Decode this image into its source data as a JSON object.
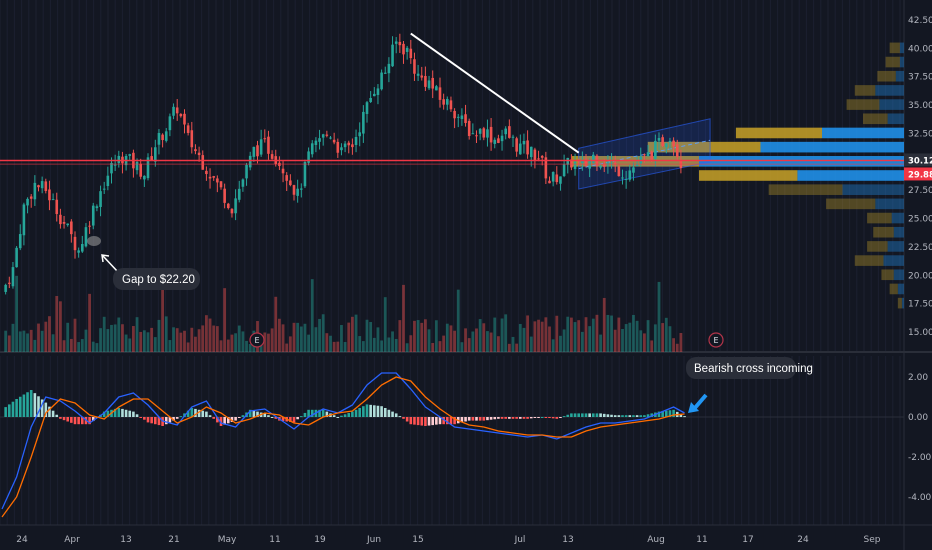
{
  "chart_data": [
    {
      "type": "candlestick",
      "panel": "price",
      "y_ticks": [
        "42.50",
        "40.00",
        "37.50",
        "35.00",
        "32.50",
        "30.00",
        "27.50",
        "25.00",
        "22.50",
        "20.00",
        "17.50",
        "15.00"
      ],
      "y_tick_values": [
        42.5,
        40,
        37.5,
        35,
        32.5,
        30,
        27.5,
        25,
        22.5,
        20,
        17.5,
        15
      ],
      "ylim": [
        13.2,
        43.4
      ],
      "x_ticks": [
        "24",
        "Apr",
        "13",
        "21",
        "May",
        "11",
        "19",
        "Jun",
        "15",
        "Jul",
        "13",
        "Aug",
        "11",
        "17",
        "24",
        "Sep"
      ],
      "last_price_label": "30.12",
      "second_price_label": "29.88",
      "last_price": 30.12,
      "second_price": 29.88,
      "horizontal_line_price": 30.12,
      "trendline": {
        "from_price": 41.3,
        "to_price": 30.8,
        "color": "#ffffff"
      },
      "channel": {
        "lower_start": 27.6,
        "upper_start": 31.2,
        "lower_end": 30.0,
        "upper_end": 33.8
      },
      "earnings_markers": [
        "E",
        "E"
      ],
      "annotations": [
        {
          "text": "Gap to $22.20",
          "price": 22.2
        }
      ],
      "price_path": [
        [
          0,
          18.5
        ],
        [
          3,
          20.5
        ],
        [
          6,
          26.0
        ],
        [
          9,
          28.0
        ],
        [
          12,
          27.5
        ],
        [
          15,
          25.8
        ],
        [
          18,
          24.0
        ],
        [
          21,
          22.2
        ],
        [
          24,
          25.0
        ],
        [
          27,
          27.5
        ],
        [
          30,
          29.5
        ],
        [
          33,
          30.5
        ],
        [
          36,
          29.8
        ],
        [
          39,
          29.0
        ],
        [
          42,
          31.5
        ],
        [
          45,
          33.0
        ],
        [
          48,
          34.8
        ],
        [
          51,
          32.0
        ],
        [
          54,
          30.5
        ],
        [
          57,
          29.0
        ],
        [
          60,
          27.5
        ],
        [
          63,
          26.0
        ],
        [
          66,
          28.5
        ],
        [
          69,
          31.0
        ],
        [
          72,
          31.5
        ],
        [
          75,
          30.5
        ],
        [
          78,
          29.0
        ],
        [
          81,
          27.0
        ],
        [
          84,
          30.5
        ],
        [
          87,
          32.0
        ],
        [
          90,
          32.5
        ],
        [
          93,
          30.8
        ],
        [
          96,
          31.5
        ],
        [
          99,
          34.0
        ],
        [
          102,
          36.5
        ],
        [
          105,
          38.0
        ],
        [
          108,
          40.5
        ],
        [
          111,
          39.8
        ],
        [
          114,
          37.5
        ],
        [
          117,
          37.0
        ],
        [
          120,
          35.5
        ],
        [
          123,
          35.0
        ],
        [
          126,
          33.5
        ],
        [
          129,
          32.5
        ],
        [
          132,
          32.8
        ],
        [
          135,
          32.0
        ],
        [
          138,
          32.5
        ],
        [
          141,
          31.5
        ],
        [
          144,
          31.0
        ],
        [
          147,
          30.5
        ],
        [
          150,
          28.3
        ],
        [
          153,
          29.0
        ],
        [
          156,
          30.0
        ],
        [
          159,
          29.5
        ],
        [
          162,
          30.5
        ],
        [
          165,
          30.0
        ],
        [
          168,
          29.5
        ],
        [
          171,
          29.0
        ],
        [
          174,
          29.8
        ],
        [
          177,
          30.5
        ],
        [
          180,
          31.5
        ],
        [
          183,
          32.5
        ],
        [
          186,
          30.1
        ]
      ],
      "volume_profile": [
        {
          "price": 40.0,
          "up": 0.05,
          "down": 0.02
        },
        {
          "price": 38.75,
          "up": 0.07,
          "down": 0.02
        },
        {
          "price": 37.5,
          "up": 0.09,
          "down": 0.04
        },
        {
          "price": 36.25,
          "up": 0.1,
          "down": 0.14
        },
        {
          "price": 35.0,
          "up": 0.16,
          "down": 0.12
        },
        {
          "price": 33.75,
          "up": 0.12,
          "down": 0.08
        },
        {
          "price": 32.5,
          "up": 0.42,
          "down": 0.4
        },
        {
          "price": 31.25,
          "up": 0.55,
          "down": 0.7
        },
        {
          "price": 30.0,
          "up": 0.62,
          "down": 1.0
        },
        {
          "price": 28.75,
          "up": 0.48,
          "down": 0.52
        },
        {
          "price": 27.5,
          "up": 0.36,
          "down": 0.3
        },
        {
          "price": 26.25,
          "up": 0.24,
          "down": 0.14
        },
        {
          "price": 25.0,
          "up": 0.12,
          "down": 0.06
        },
        {
          "price": 23.75,
          "up": 0.1,
          "down": 0.05
        },
        {
          "price": 22.5,
          "up": 0.1,
          "down": 0.08
        },
        {
          "price": 21.25,
          "up": 0.14,
          "down": 0.1
        },
        {
          "price": 20.0,
          "up": 0.06,
          "down": 0.05
        },
        {
          "price": 18.75,
          "up": 0.04,
          "down": 0.03
        },
        {
          "price": 17.5,
          "up": 0.02,
          "down": 0.01
        }
      ],
      "colors": {
        "up": "#26a69a",
        "down": "#ef5350",
        "hline": "#f23645",
        "profile_up": "#2196f3",
        "profile_down": "#c9a227",
        "channel": "#2962ff"
      }
    },
    {
      "type": "macd",
      "panel": "indicator",
      "y_ticks": [
        "2.00",
        "0.00",
        "-2.00",
        "-4.00"
      ],
      "y_tick_values": [
        2,
        0,
        -2,
        -4
      ],
      "ylim": [
        -5.0,
        3.0
      ],
      "annotations": [
        {
          "text": "Bearish cross incoming"
        }
      ],
      "macd_path": [
        [
          0,
          -4.6
        ],
        [
          4,
          -3.0
        ],
        [
          8,
          -0.5
        ],
        [
          12,
          1.0
        ],
        [
          16,
          0.8
        ],
        [
          20,
          0.3
        ],
        [
          24,
          -0.3
        ],
        [
          28,
          0.2
        ],
        [
          32,
          1.0
        ],
        [
          36,
          1.2
        ],
        [
          40,
          0.6
        ],
        [
          44,
          -0.2
        ],
        [
          48,
          -0.4
        ],
        [
          52,
          0.5
        ],
        [
          56,
          0.8
        ],
        [
          60,
          -0.3
        ],
        [
          64,
          -0.5
        ],
        [
          68,
          0.3
        ],
        [
          72,
          0.4
        ],
        [
          76,
          -0.1
        ],
        [
          80,
          -0.6
        ],
        [
          84,
          0.0
        ],
        [
          88,
          0.4
        ],
        [
          92,
          0.2
        ],
        [
          96,
          0.6
        ],
        [
          100,
          1.6
        ],
        [
          104,
          2.2
        ],
        [
          108,
          2.2
        ],
        [
          112,
          1.4
        ],
        [
          116,
          0.5
        ],
        [
          120,
          0.0
        ],
        [
          124,
          -0.5
        ],
        [
          128,
          -0.6
        ],
        [
          132,
          -0.7
        ],
        [
          136,
          -0.8
        ],
        [
          140,
          -0.9
        ],
        [
          144,
          -1.0
        ],
        [
          148,
          -0.9
        ],
        [
          152,
          -1.1
        ],
        [
          156,
          -0.8
        ],
        [
          160,
          -0.5
        ],
        [
          164,
          -0.3
        ],
        [
          168,
          -0.3
        ],
        [
          172,
          -0.2
        ],
        [
          176,
          -0.1
        ],
        [
          180,
          0.2
        ],
        [
          184,
          0.5
        ],
        [
          187,
          0.2
        ]
      ],
      "signal_path": [
        [
          0,
          -5.0
        ],
        [
          4,
          -4.0
        ],
        [
          8,
          -2.0
        ],
        [
          12,
          0.2
        ],
        [
          16,
          0.9
        ],
        [
          20,
          0.7
        ],
        [
          24,
          0.1
        ],
        [
          28,
          -0.1
        ],
        [
          32,
          0.5
        ],
        [
          36,
          0.9
        ],
        [
          40,
          0.9
        ],
        [
          44,
          0.3
        ],
        [
          48,
          -0.3
        ],
        [
          52,
          0.0
        ],
        [
          56,
          0.5
        ],
        [
          60,
          0.2
        ],
        [
          64,
          -0.3
        ],
        [
          68,
          -0.1
        ],
        [
          72,
          0.2
        ],
        [
          76,
          0.1
        ],
        [
          80,
          -0.3
        ],
        [
          84,
          -0.4
        ],
        [
          88,
          0.0
        ],
        [
          92,
          0.2
        ],
        [
          96,
          0.3
        ],
        [
          100,
          0.9
        ],
        [
          104,
          1.6
        ],
        [
          108,
          2.0
        ],
        [
          112,
          1.8
        ],
        [
          116,
          1.0
        ],
        [
          120,
          0.4
        ],
        [
          124,
          -0.1
        ],
        [
          128,
          -0.4
        ],
        [
          132,
          -0.5
        ],
        [
          136,
          -0.7
        ],
        [
          140,
          -0.8
        ],
        [
          144,
          -0.9
        ],
        [
          148,
          -0.9
        ],
        [
          152,
          -1.0
        ],
        [
          156,
          -1.0
        ],
        [
          160,
          -0.7
        ],
        [
          164,
          -0.5
        ],
        [
          168,
          -0.4
        ],
        [
          172,
          -0.3
        ],
        [
          176,
          -0.2
        ],
        [
          180,
          -0.1
        ],
        [
          184,
          0.1
        ],
        [
          187,
          0.15
        ]
      ],
      "colors": {
        "macd": "#2962ff",
        "signal": "#ff6d00",
        "hist_pos_strong": "#26a69a",
        "hist_pos_weak": "#b2dfdb",
        "hist_neg_strong": "#ff5252",
        "hist_neg_weak": "#ffcdd2"
      }
    }
  ]
}
